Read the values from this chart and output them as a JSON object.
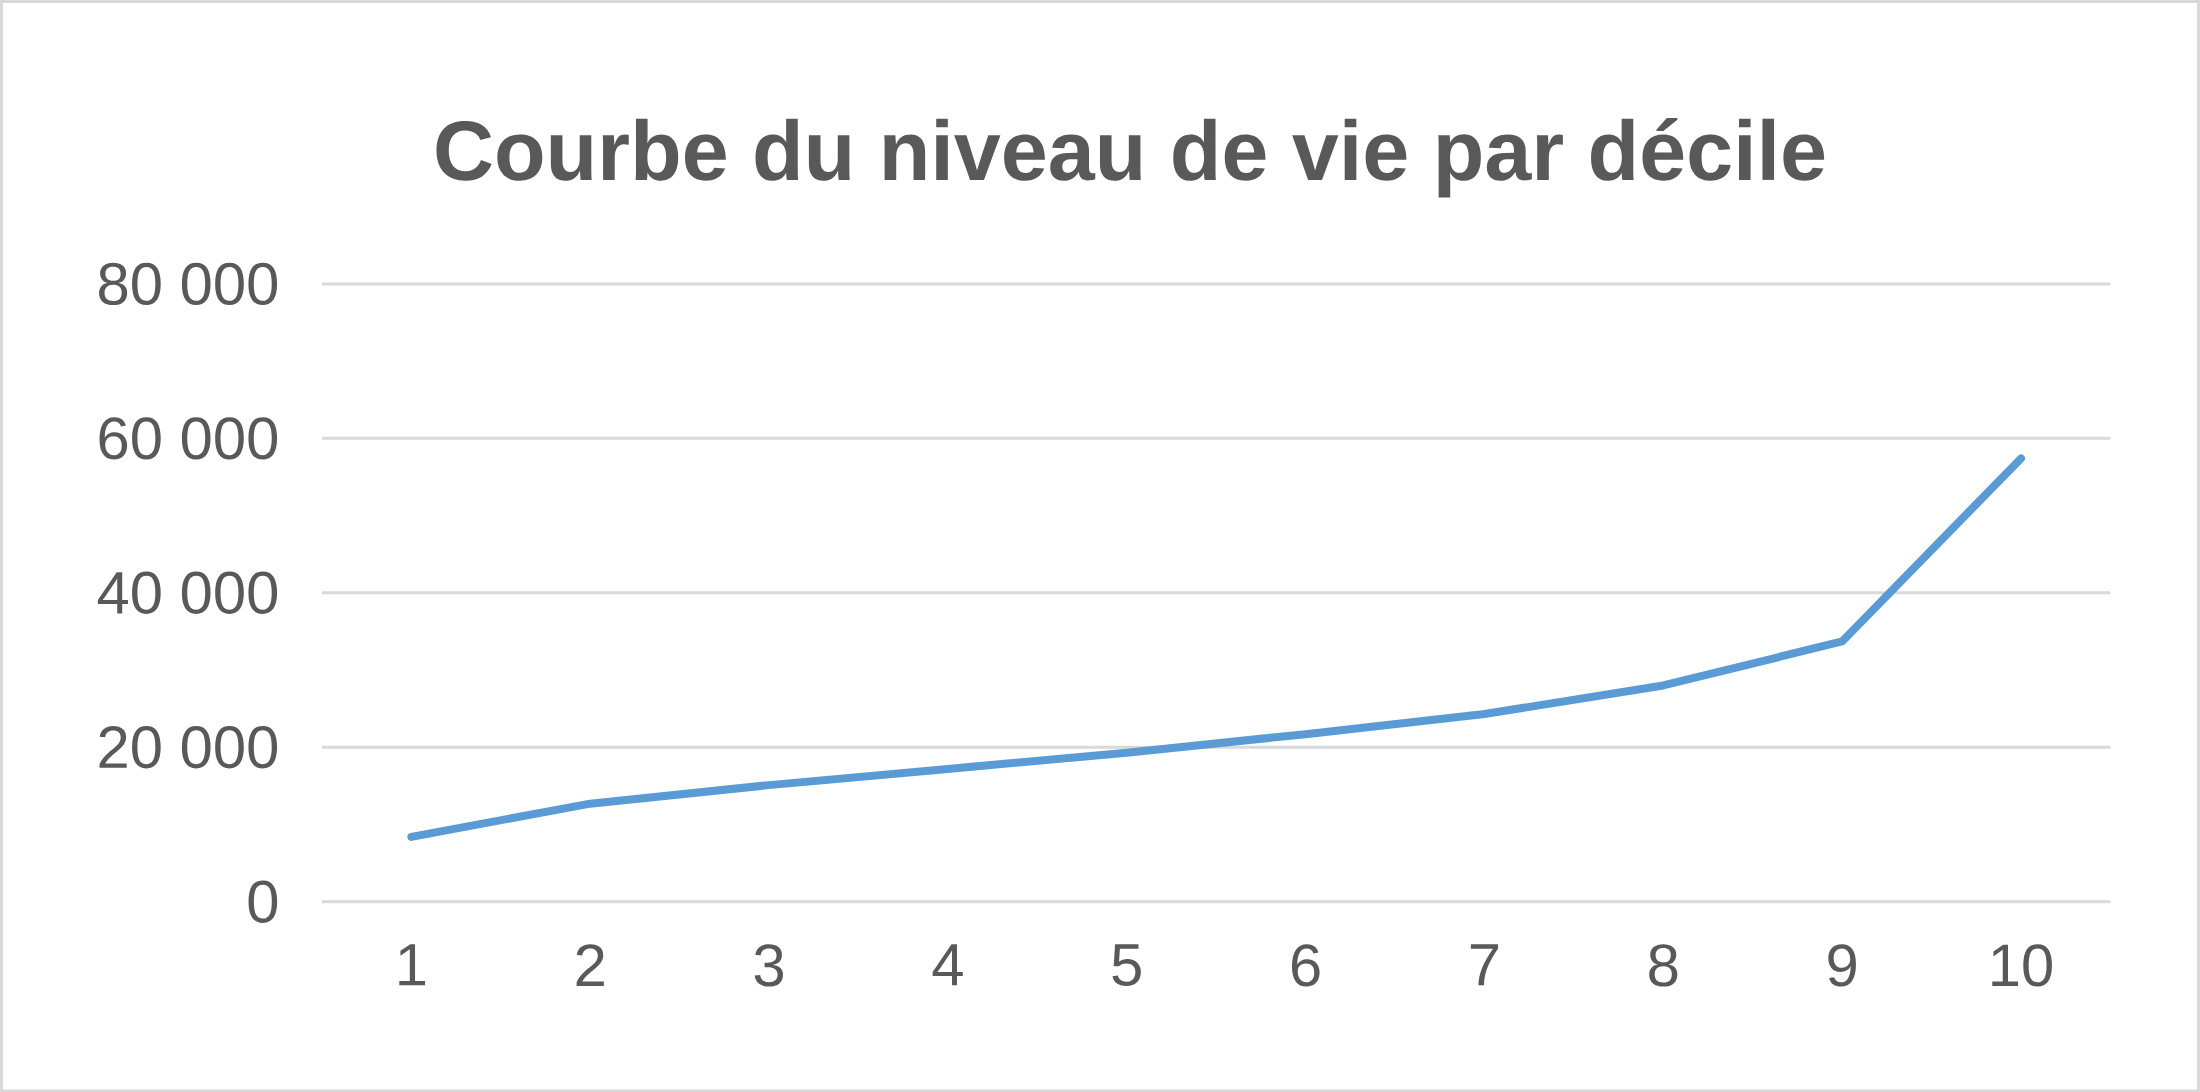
{
  "chart_data": {
    "type": "line",
    "title": "Courbe du niveau de vie par décile",
    "categories": [
      "1",
      "2",
      "3",
      "4",
      "5",
      "6",
      "7",
      "8",
      "9",
      "10"
    ],
    "series": [
      {
        "color": "#5b9bd5",
        "values": [
          8400,
          12700,
          15100,
          17200,
          19300,
          21700,
          24300,
          28000,
          33700,
          57400
        ]
      }
    ],
    "ylim": [
      0,
      80000
    ],
    "yticks": [
      {
        "value": 0,
        "label": "0"
      },
      {
        "value": 20000,
        "label": "20 000"
      },
      {
        "value": 40000,
        "label": "40 000"
      },
      {
        "value": 60000,
        "label": "60 000"
      },
      {
        "value": 80000,
        "label": "80 000"
      }
    ],
    "grid": "y"
  }
}
